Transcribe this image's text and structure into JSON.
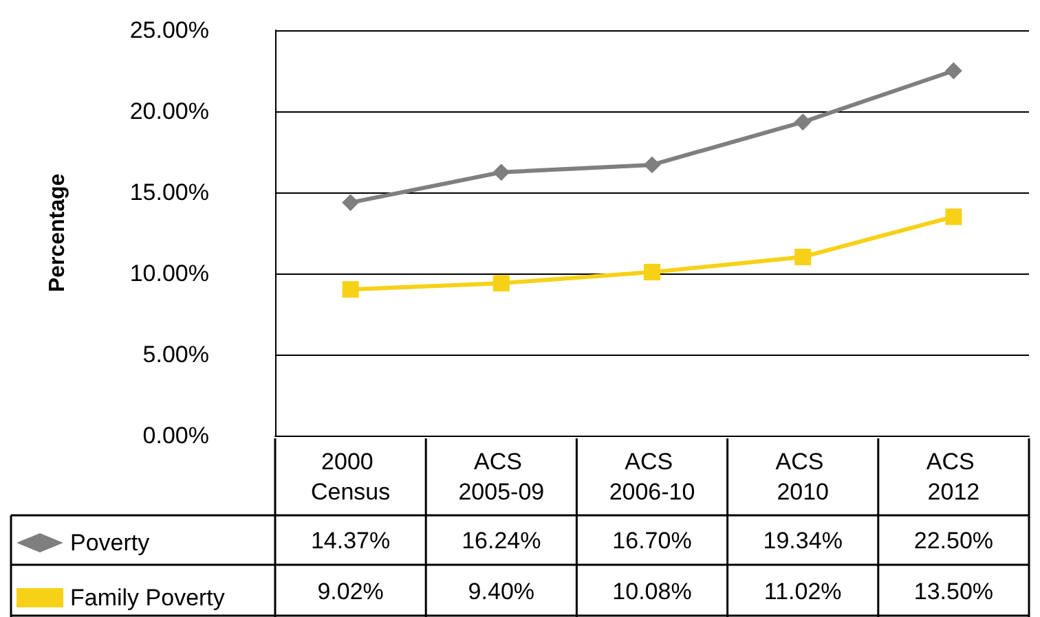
{
  "chart_data": {
    "type": "line",
    "ylabel": "Percentage",
    "categories": [
      "2000 Census",
      "ACS 2005-09",
      "ACS 2006-10",
      "ACS 2010",
      "ACS 2012"
    ],
    "series": [
      {
        "name": "Poverty",
        "color": "#7f7f7f",
        "marker": "diamond",
        "values": [
          14.37,
          16.24,
          16.7,
          19.34,
          22.5
        ],
        "value_labels": [
          "14.37%",
          "16.24%",
          "16.70%",
          "19.34%",
          "22.50%"
        ]
      },
      {
        "name": "Family Poverty",
        "color": "#f7d117",
        "marker": "square",
        "values": [
          9.02,
          9.4,
          10.08,
          11.02,
          13.5
        ],
        "value_labels": [
          "9.02%",
          "9.40%",
          "10.08%",
          "11.02%",
          "13.50%"
        ]
      }
    ],
    "ylim": [
      0,
      25
    ],
    "yticks": [
      {
        "value": 0,
        "label": "0.00%"
      },
      {
        "value": 5,
        "label": "5.00%"
      },
      {
        "value": 10,
        "label": "10.00%"
      },
      {
        "value": 15,
        "label": "15.00%"
      },
      {
        "value": 20,
        "label": "20.00%"
      },
      {
        "value": 25,
        "label": "25.00%"
      }
    ],
    "grid": "y",
    "legend": "bottom left"
  }
}
